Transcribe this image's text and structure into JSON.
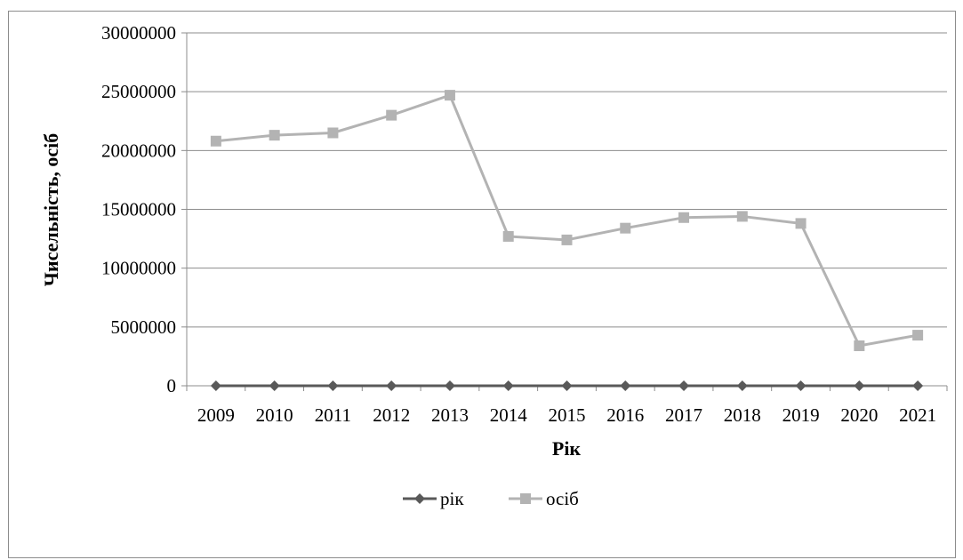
{
  "chart_data": {
    "type": "line",
    "title": "",
    "xlabel": "Рік",
    "ylabel": "Чисельність, осіб",
    "categories": [
      "2009",
      "2010",
      "2011",
      "2012",
      "2013",
      "2014",
      "2015",
      "2016",
      "2017",
      "2018",
      "2019",
      "2020",
      "2021"
    ],
    "ylim": [
      0,
      30000000
    ],
    "yticks": [
      "0",
      "5000000",
      "10000000",
      "15000000",
      "20000000",
      "25000000",
      "30000000"
    ],
    "grid": true,
    "legend_position": "bottom",
    "series": [
      {
        "name": "рік",
        "color": "#595959",
        "marker": "diamond",
        "values": [
          2009,
          2010,
          2011,
          2012,
          2013,
          2014,
          2015,
          2016,
          2017,
          2018,
          2019,
          2020,
          2021
        ]
      },
      {
        "name": "осіб",
        "color": "#b3b3b3",
        "marker": "square",
        "values": [
          20800000,
          21300000,
          21500000,
          23000000,
          24700000,
          12700000,
          12400000,
          13400000,
          14300000,
          14400000,
          13800000,
          3400000,
          4300000
        ]
      }
    ]
  }
}
